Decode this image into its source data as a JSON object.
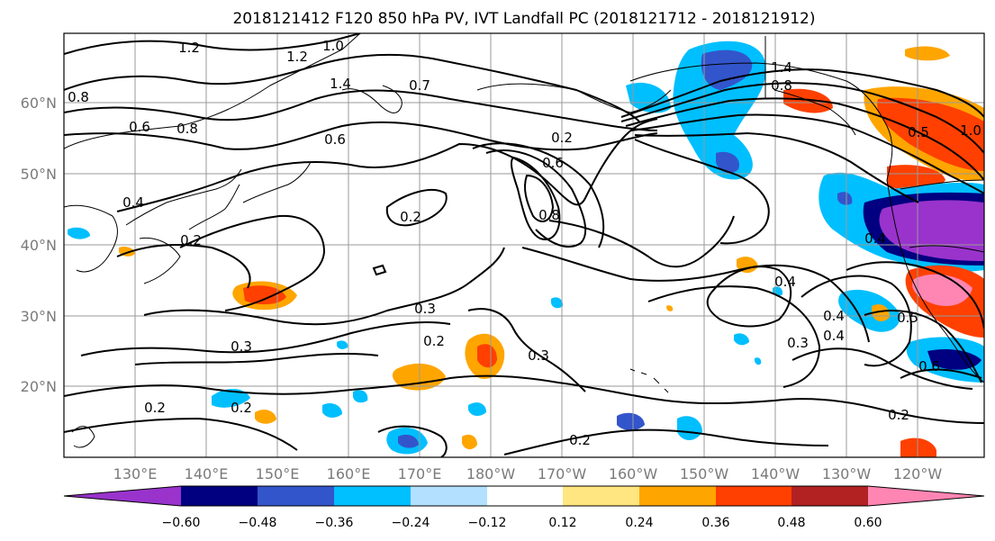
{
  "title": "2018121412 F120 850 hPa PV, IVT Landfall PC (2018121712 - 2018121912)",
  "map": {
    "lon_labels": [
      "130°E",
      "140°E",
      "150°E",
      "160°E",
      "170°E",
      "180°W",
      "170°W",
      "160°W",
      "150°W",
      "140°W",
      "130°W",
      "120°W"
    ],
    "lat_labels": [
      "60°N",
      "50°N",
      "40°N",
      "30°N",
      "20°N"
    ]
  },
  "colorbar": {
    "ticks": [
      "−0.60",
      "−0.48",
      "−0.36",
      "−0.24",
      "−0.12",
      "0.12",
      "0.24",
      "0.36",
      "0.48",
      "0.60"
    ],
    "colors": [
      "#9933cc",
      "#000080",
      "#3355cc",
      "#00bfff",
      "#b3e0ff",
      "#ffffff",
      "#ffe680",
      "#ffa500",
      "#ff4000",
      "#b22222",
      "#ff85b3"
    ]
  },
  "contour_labels": [
    "1.2",
    "1.0",
    "1.2",
    "1.4",
    "0.8",
    "0.6",
    "0.8",
    "0.6",
    "1.4",
    "0.8",
    "0.4",
    "0.7",
    "0.2",
    "0.6",
    "0.8",
    "0.2",
    "0.4",
    "0.2",
    "0.3",
    "0.3",
    "0.2",
    "0.3",
    "0.2",
    "0.4",
    "0.4",
    "0.3",
    "0.4",
    "0.5",
    "0.6",
    "0.2",
    "0.2",
    "0.5",
    "1.0",
    "0.2"
  ]
}
